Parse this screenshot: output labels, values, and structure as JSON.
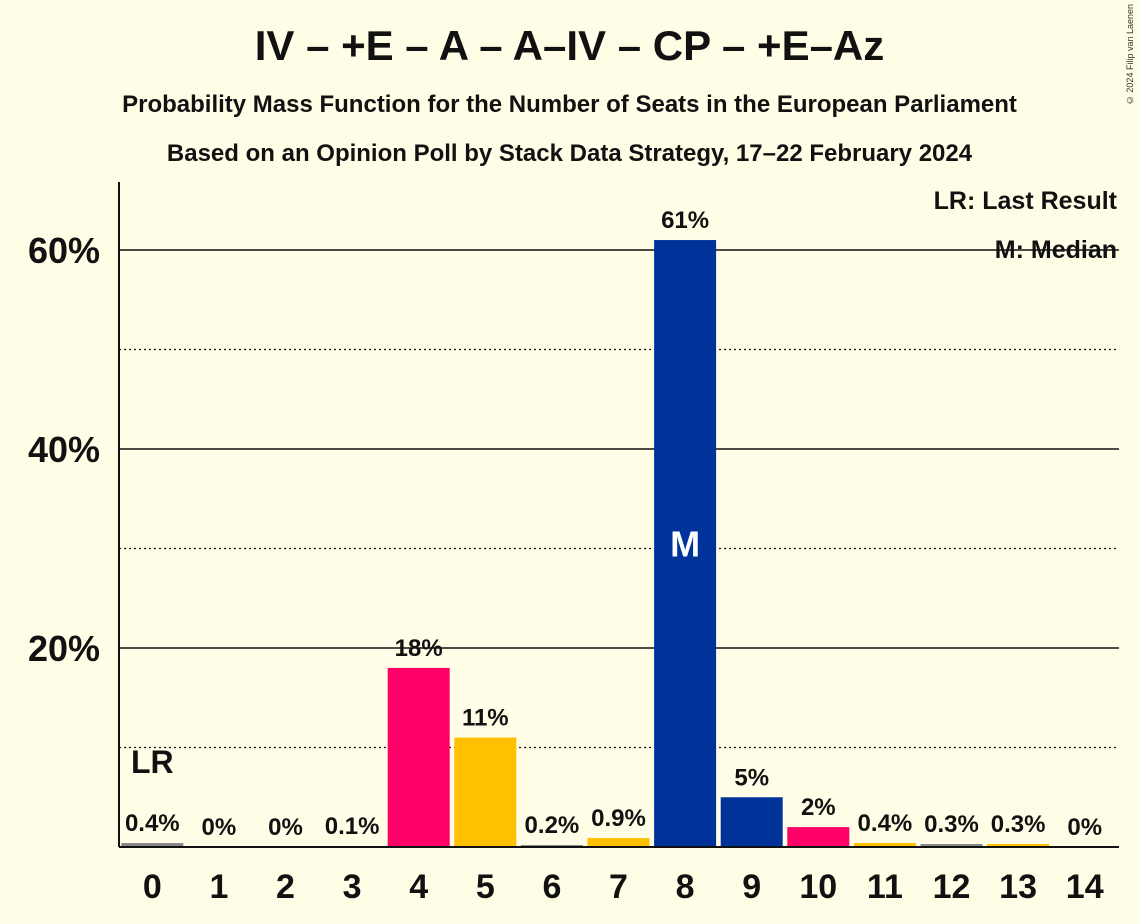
{
  "header": {
    "title": "IV – +E – A – A–IV – CP – +E–Az",
    "subtitle": "Probability Mass Function for the Number of Seats in the European Parliament",
    "subtitle2": "Based on an Opinion Poll by Stack Data Strategy, 17–22 February 2024",
    "copyright": "© 2024 Filip van Laenen"
  },
  "legend": {
    "last_result": "LR: Last Result",
    "median": "M: Median"
  },
  "chart_data": {
    "type": "bar",
    "categories": [
      "0",
      "1",
      "2",
      "3",
      "4",
      "5",
      "6",
      "7",
      "8",
      "9",
      "10",
      "11",
      "12",
      "13",
      "14"
    ],
    "values": [
      0.4,
      0,
      0,
      0.1,
      18,
      11,
      0.2,
      0.9,
      61,
      5,
      2,
      0.4,
      0.3,
      0.3,
      0
    ],
    "labels": [
      "0.4%",
      "0%",
      "0%",
      "0.1%",
      "18%",
      "11%",
      "0.2%",
      "0.9%",
      "61%",
      "5%",
      "2%",
      "0.4%",
      "0.3%",
      "0.3%",
      "0%"
    ],
    "bar_colors": [
      "#888888",
      "#888888",
      "#888888",
      "#888888",
      "#ff0066",
      "#ffc000",
      "#888888",
      "#ffc000",
      "#003399",
      "#003399",
      "#ff0066",
      "#ffc000",
      "#888888",
      "#ffc000",
      "#888888"
    ],
    "ylim": [
      0,
      67
    ],
    "yticks": [
      20,
      40,
      60
    ],
    "ytick_labels": [
      "20%",
      "40%",
      "60%"
    ],
    "minor_gridlines": [
      10,
      30,
      50
    ],
    "last_result_category": "0",
    "last_result_marker": "LR",
    "median_category": "8",
    "median_marker": "M",
    "legend_position": "top-right"
  }
}
